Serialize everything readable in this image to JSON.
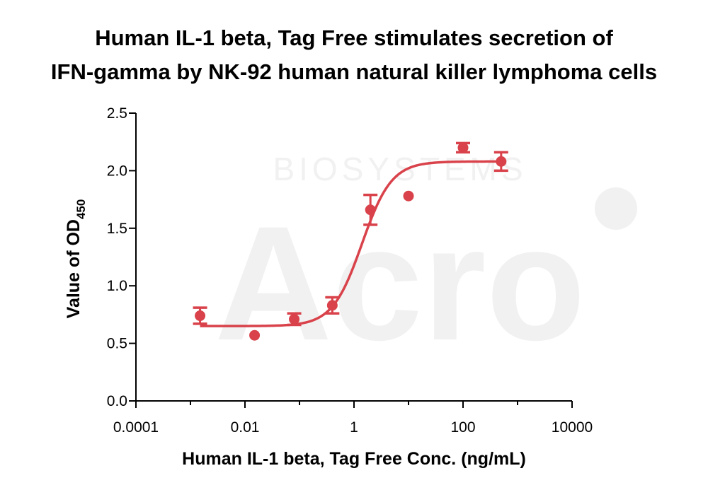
{
  "watermark": {
    "brand": "Acro",
    "sub": "BIOSYSTEMS"
  },
  "chart_data": {
    "type": "scatter",
    "title_line1": "Human IL-1 beta, Tag Free stimulates secretion of",
    "title_line2": "IFN-gamma by NK-92 human natural killer lymphoma cells",
    "xlabel": "Human IL-1 beta, Tag Free Conc. (ng/mL)",
    "ylabel_main": "Value of OD",
    "ylabel_sub": "450",
    "xscale": "log",
    "xlim": [
      0.0001,
      10000
    ],
    "ylim": [
      0,
      2.5
    ],
    "x_ticks": [
      0.0001,
      0.01,
      1,
      100,
      10000
    ],
    "x_tick_labels": [
      "0.0001",
      "0.01",
      "1",
      "100",
      "10000"
    ],
    "y_ticks": [
      0,
      0.5,
      1.0,
      1.5,
      2.0,
      2.5
    ],
    "y_tick_labels": [
      "0.0",
      "0.5",
      "1.0",
      "1.5",
      "2.0",
      "2.5"
    ],
    "grid": false,
    "color": "#d9424a",
    "series": [
      {
        "x": [
          0.0015,
          0.015,
          0.08,
          0.4,
          2.0,
          10,
          100,
          500
        ],
        "y": [
          0.74,
          0.57,
          0.71,
          0.83,
          1.66,
          1.78,
          2.2,
          2.08
        ],
        "err": [
          0.07,
          0,
          0.05,
          0.07,
          0.13,
          0,
          0.04,
          0.08
        ]
      }
    ],
    "fit_curve": {
      "model": "4PL",
      "bottom": 0.65,
      "top": 2.08,
      "ec50": 1.4,
      "hill": 1.6
    }
  }
}
